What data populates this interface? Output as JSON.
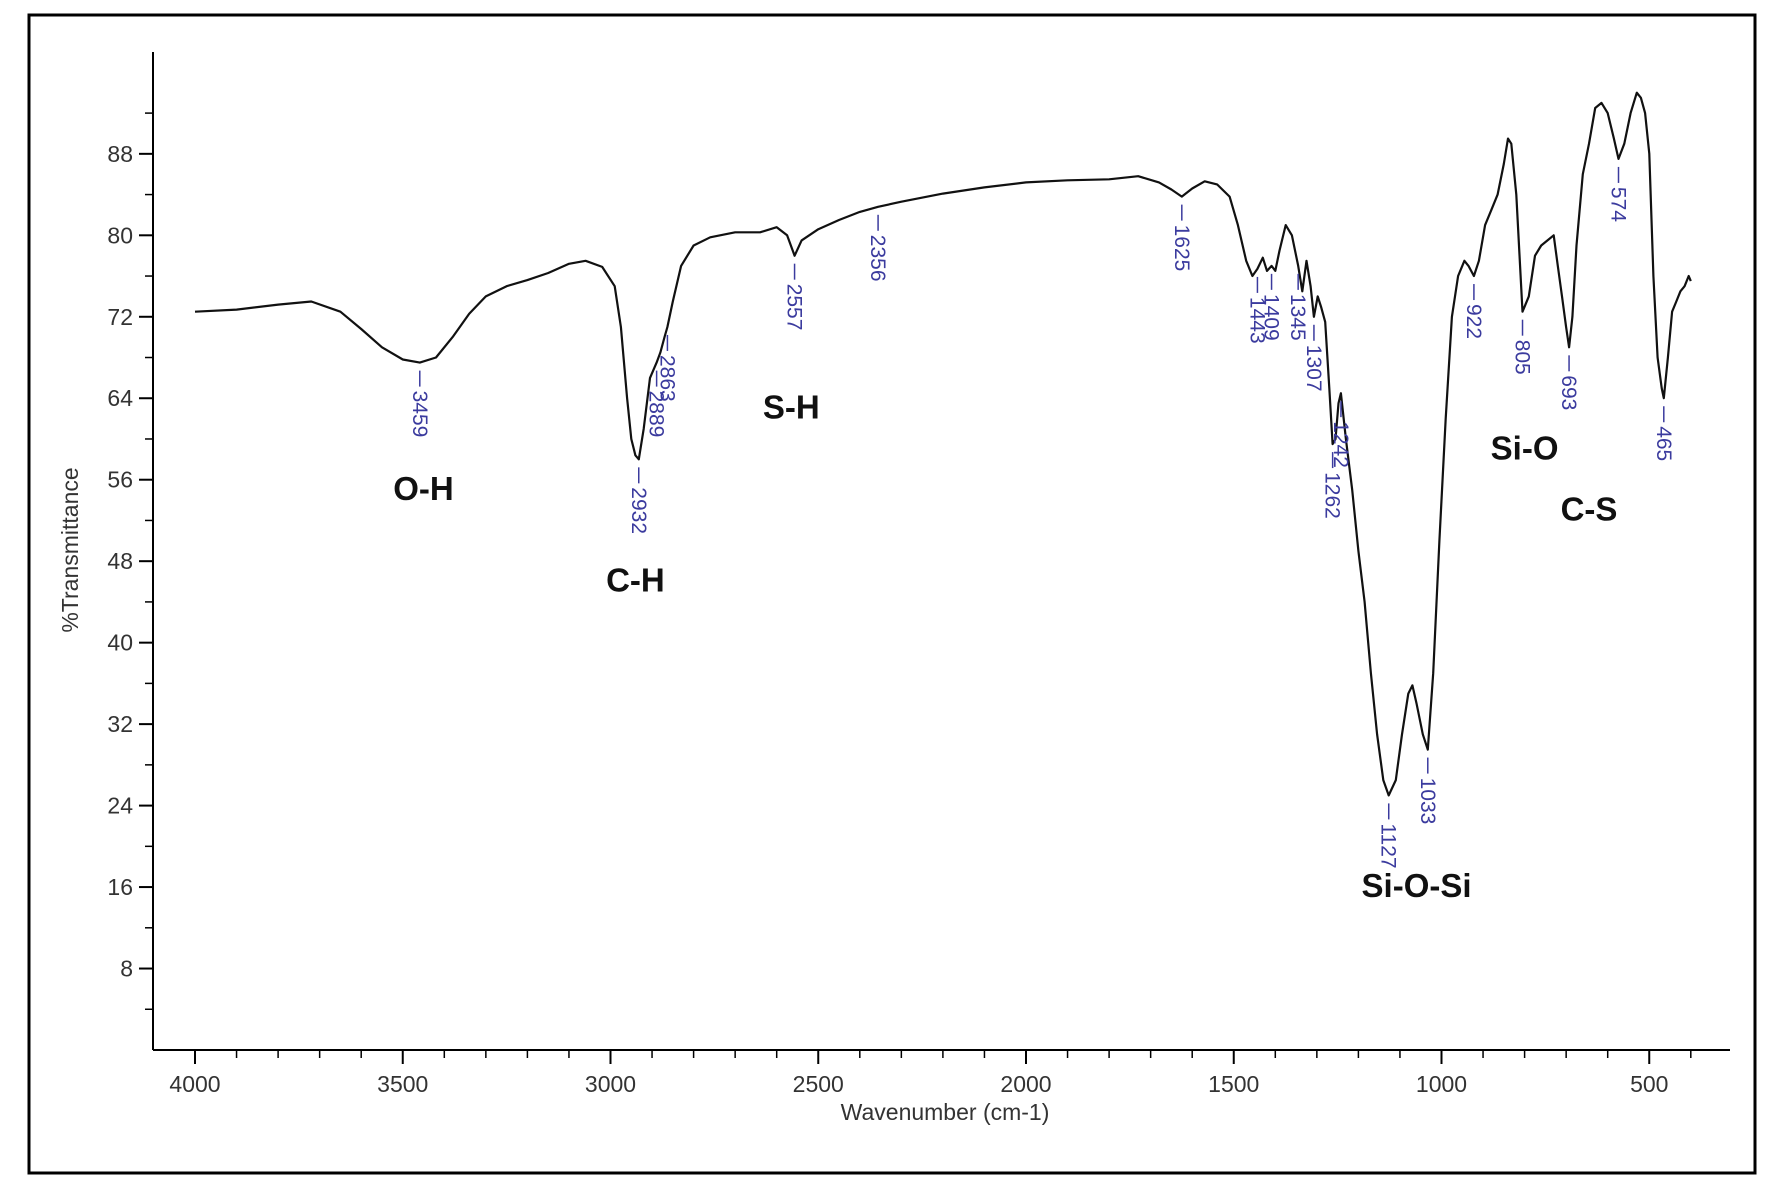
{
  "chart_data": {
    "type": "line",
    "xlabel": "Wavenumber (cm-1)",
    "ylabel": "%Transmittance",
    "xlim": [
      4000,
      400
    ],
    "ylim": [
      0,
      98
    ],
    "x_ticks": [
      4000,
      3500,
      3000,
      2500,
      2000,
      1500,
      1000,
      500
    ],
    "y_ticks": [
      8,
      16,
      24,
      32,
      40,
      48,
      56,
      64,
      72,
      80,
      88
    ],
    "grid": false,
    "legend": "none",
    "colors": {
      "line": "#111111",
      "peak_label": "#3b3b9e",
      "frame": "#000000"
    },
    "series": [
      {
        "x": [
          4000,
          3900,
          3800,
          3720,
          3650,
          3600,
          3550,
          3500,
          3459,
          3420,
          3380,
          3340,
          3300,
          3250,
          3200,
          3150,
          3100,
          3060,
          3020,
          2990,
          2975,
          2960,
          2950,
          2940,
          2932,
          2920,
          2905,
          2889,
          2880,
          2870,
          2863,
          2850,
          2830,
          2800,
          2760,
          2700,
          2640,
          2600,
          2575,
          2557,
          2540,
          2500,
          2450,
          2400,
          2356,
          2300,
          2200,
          2100,
          2000,
          1900,
          1800,
          1730,
          1680,
          1650,
          1625,
          1600,
          1570,
          1540,
          1510,
          1490,
          1470,
          1455,
          1443,
          1430,
          1420,
          1409,
          1400,
          1390,
          1375,
          1360,
          1345,
          1335,
          1325,
          1315,
          1307,
          1298,
          1290,
          1280,
          1270,
          1262,
          1255,
          1248,
          1242,
          1230,
          1215,
          1200,
          1185,
          1170,
          1155,
          1140,
          1127,
          1110,
          1095,
          1080,
          1070,
          1060,
          1045,
          1033,
          1020,
          1005,
          990,
          975,
          960,
          945,
          935,
          922,
          910,
          895,
          880,
          865,
          850,
          840,
          832,
          820,
          805,
          790,
          775,
          760,
          745,
          730,
          720,
          710,
          700,
          693,
          685,
          675,
          660,
          645,
          630,
          615,
          600,
          585,
          574,
          560,
          545,
          530,
          520,
          510,
          500,
          490,
          480,
          470,
          465,
          455,
          445,
          435,
          425,
          415,
          405,
          400
        ],
        "y": [
          72.5,
          72.7,
          73.2,
          73.5,
          72.5,
          70.8,
          69.0,
          67.8,
          67.5,
          68.0,
          70.0,
          72.3,
          74.0,
          75.0,
          75.6,
          76.3,
          77.2,
          77.5,
          76.9,
          75.0,
          71.0,
          64.0,
          60.0,
          58.4,
          58.0,
          61.0,
          66.0,
          67.5,
          68.5,
          70.0,
          71.0,
          73.5,
          77.0,
          79.0,
          79.8,
          80.3,
          80.3,
          80.8,
          80.0,
          78.0,
          79.5,
          80.6,
          81.5,
          82.3,
          82.8,
          83.3,
          84.1,
          84.7,
          85.2,
          85.4,
          85.5,
          85.8,
          85.2,
          84.5,
          83.8,
          84.6,
          85.3,
          85.0,
          83.8,
          81.0,
          77.5,
          76.0,
          76.7,
          77.8,
          76.5,
          77.0,
          76.5,
          78.5,
          81.0,
          80.0,
          77.0,
          74.5,
          77.5,
          75.0,
          72.0,
          74.0,
          73.0,
          71.5,
          65.0,
          59.5,
          60.0,
          63.5,
          64.5,
          60.0,
          55.0,
          49.0,
          44.0,
          37.0,
          31.0,
          26.5,
          25.0,
          26.5,
          31.0,
          35.0,
          35.8,
          34.0,
          31.0,
          29.5,
          37.0,
          50.0,
          62.0,
          72.0,
          76.0,
          77.5,
          77.0,
          76.0,
          77.5,
          81.0,
          82.5,
          84.0,
          87.0,
          89.5,
          89.0,
          84.0,
          72.5,
          74.0,
          78.0,
          79.0,
          79.5,
          80.0,
          77.0,
          74.0,
          71.0,
          69.0,
          72.0,
          79.0,
          86.0,
          89.0,
          92.5,
          93.0,
          92.0,
          89.5,
          87.5,
          89.0,
          92.0,
          94.0,
          93.5,
          92.0,
          88.0,
          76.0,
          68.0,
          65.0,
          64.0,
          68.0,
          72.5,
          73.5,
          74.5,
          75.0,
          76.0,
          75.5
        ]
      }
    ],
    "peak_labels": [
      {
        "x": 3459,
        "y": 67.5,
        "text": "3459"
      },
      {
        "x": 2932,
        "y": 58.0,
        "text": "2932"
      },
      {
        "x": 2889,
        "y": 67.5,
        "text": "2889"
      },
      {
        "x": 2863,
        "y": 71.0,
        "text": "2863"
      },
      {
        "x": 2557,
        "y": 78.0,
        "text": "2557"
      },
      {
        "x": 2356,
        "y": 82.8,
        "text": "2356"
      },
      {
        "x": 1625,
        "y": 83.8,
        "text": "1625"
      },
      {
        "x": 1443,
        "y": 76.7,
        "text": "1443"
      },
      {
        "x": 1409,
        "y": 77.0,
        "text": "1409"
      },
      {
        "x": 1345,
        "y": 77.0,
        "text": "1345"
      },
      {
        "x": 1307,
        "y": 72.0,
        "text": "1307"
      },
      {
        "x": 1262,
        "y": 59.5,
        "text": "1262"
      },
      {
        "x": 1242,
        "y": 64.5,
        "text": "1242"
      },
      {
        "x": 1127,
        "y": 25.0,
        "text": "1127"
      },
      {
        "x": 1033,
        "y": 29.5,
        "text": "1033"
      },
      {
        "x": 922,
        "y": 76.0,
        "text": "922"
      },
      {
        "x": 805,
        "y": 72.5,
        "text": "805"
      },
      {
        "x": 693,
        "y": 69.0,
        "text": "693"
      },
      {
        "x": 574,
        "y": 87.5,
        "text": "574"
      },
      {
        "x": 465,
        "y": 64.0,
        "text": "465"
      }
    ],
    "annotations": [
      {
        "text": "O-H",
        "x": 3450,
        "y": 54
      },
      {
        "text": "C-H",
        "x": 2940,
        "y": 45
      },
      {
        "text": "S-H",
        "x": 2565,
        "y": 62
      },
      {
        "text": "Si-O",
        "x": 800,
        "y": 58
      },
      {
        "text": "C-S",
        "x": 645,
        "y": 52
      },
      {
        "text": "Si-O-Si",
        "x": 1060,
        "y": 15
      }
    ]
  }
}
